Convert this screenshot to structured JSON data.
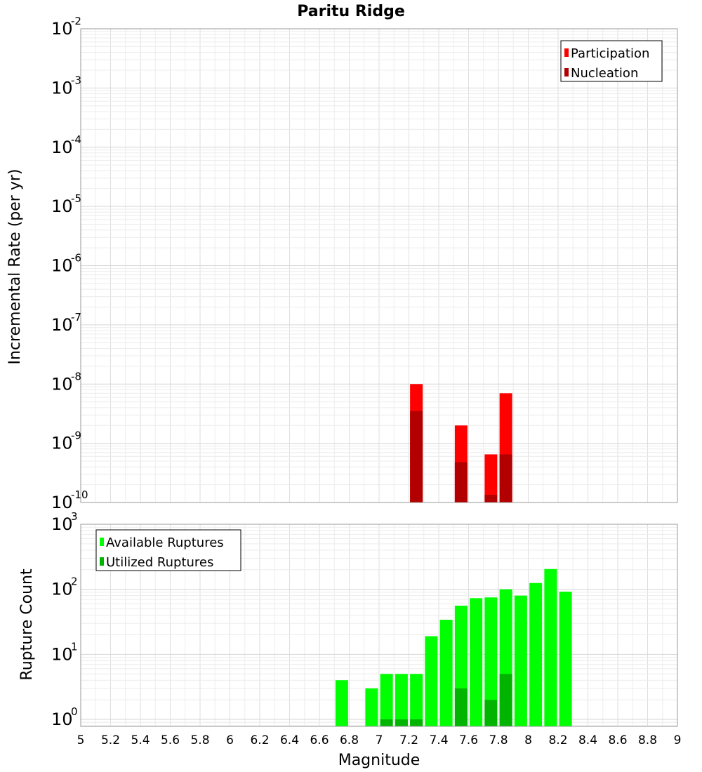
{
  "chart_data": {
    "title": "Paritu Ridge",
    "xlabel": "Magnitude",
    "xlim": [
      5,
      9
    ],
    "x_ticks": [
      "5",
      "5.2",
      "5.4",
      "5.6",
      "5.8",
      "6",
      "6.2",
      "6.4",
      "6.6",
      "6.8",
      "7",
      "7.2",
      "7.4",
      "7.6",
      "7.8",
      "8",
      "8.2",
      "8.4",
      "8.6",
      "8.8",
      "9"
    ],
    "grid": true,
    "panels": [
      {
        "type": "bar",
        "ylabel": "Incremental Rate (per yr)",
        "yscale": "log",
        "ylim": [
          1e-10,
          0.01
        ],
        "y_tick_labels": [
          {
            "base": "10",
            "exp": "-2"
          },
          {
            "base": "10",
            "exp": "-3"
          },
          {
            "base": "10",
            "exp": "-4"
          },
          {
            "base": "10",
            "exp": "-5"
          },
          {
            "base": "10",
            "exp": "-6"
          },
          {
            "base": "10",
            "exp": "-7"
          },
          {
            "base": "10",
            "exp": "-8"
          },
          {
            "base": "10",
            "exp": "-9"
          },
          {
            "base": "10",
            "exp": "-10"
          }
        ],
        "legend_position": "top-right",
        "series": [
          {
            "name": "Participation",
            "color": "#ff0000",
            "points": [
              [
                7.25,
                1e-08
              ],
              [
                7.55,
                2e-09
              ],
              [
                7.75,
                6.5e-10
              ],
              [
                7.85,
                7e-09
              ]
            ]
          },
          {
            "name": "Nucleation",
            "color": "#b20000",
            "points": [
              [
                7.25,
                3.5e-09
              ],
              [
                7.55,
                4.8e-10
              ],
              [
                7.75,
                1.35e-10
              ],
              [
                7.85,
                6.5e-10
              ]
            ]
          }
        ]
      },
      {
        "type": "bar",
        "ylabel": "Rupture Count",
        "yscale": "log",
        "ylim": [
          0.78,
          1000
        ],
        "y_tick_labels": [
          {
            "base": "10",
            "exp": "3"
          },
          {
            "base": "10",
            "exp": "2"
          },
          {
            "base": "10",
            "exp": "1"
          },
          {
            "base": "10",
            "exp": "0"
          }
        ],
        "legend_position": "top-left",
        "series": [
          {
            "name": "Available Ruptures",
            "color": "#00ff00",
            "points": [
              [
                6.75,
                4
              ],
              [
                6.95,
                3
              ],
              [
                7.05,
                5
              ],
              [
                7.15,
                5
              ],
              [
                7.25,
                5
              ],
              [
                7.35,
                19
              ],
              [
                7.45,
                34
              ],
              [
                7.55,
                56
              ],
              [
                7.65,
                73
              ],
              [
                7.75,
                75
              ],
              [
                7.85,
                100
              ],
              [
                7.95,
                80
              ],
              [
                8.05,
                125
              ],
              [
                8.15,
                205
              ],
              [
                8.25,
                92
              ]
            ]
          },
          {
            "name": "Utilized Ruptures",
            "color": "#00b400",
            "points": [
              [
                7.05,
                1
              ],
              [
                7.15,
                1
              ],
              [
                7.25,
                1
              ],
              [
                7.55,
                3
              ],
              [
                7.75,
                2
              ],
              [
                7.85,
                5
              ]
            ]
          }
        ]
      }
    ]
  }
}
